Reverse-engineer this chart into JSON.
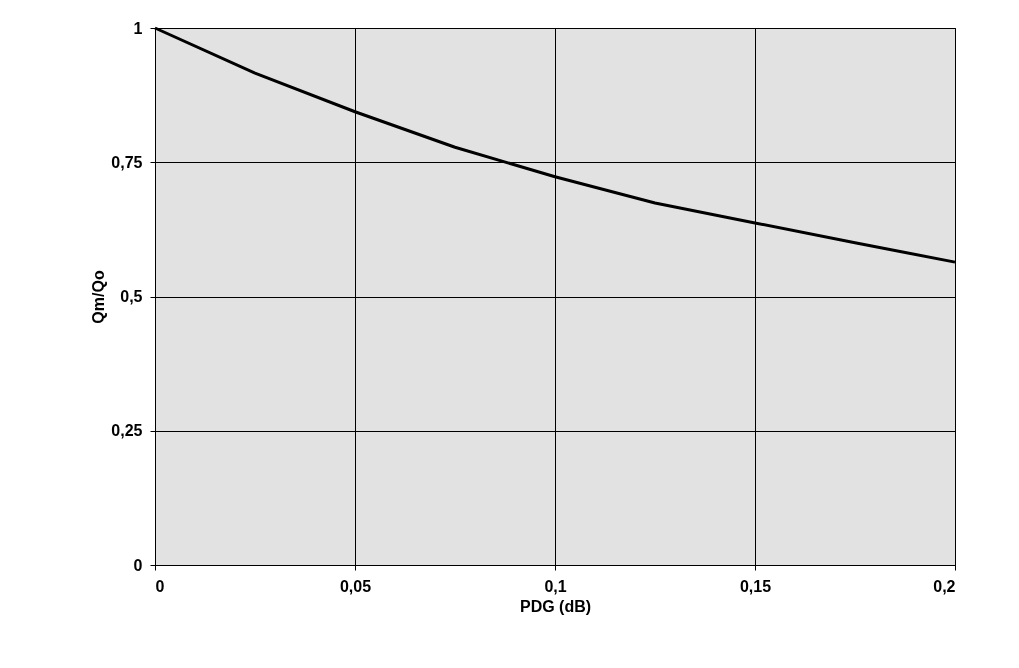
{
  "chart_data": {
    "type": "line",
    "xlabel": "PDG (dB)",
    "ylabel": "Qm/Qo",
    "x": [
      0,
      0.025,
      0.05,
      0.075,
      0.1,
      0.125,
      0.15,
      0.175,
      0.2
    ],
    "series": [
      {
        "color": "#000000",
        "values": [
          1.0,
          0.916,
          0.844,
          0.778,
          0.723,
          0.674,
          0.637,
          0.6,
          0.564
        ]
      }
    ],
    "xlim": [
      0,
      0.2
    ],
    "ylim": [
      0,
      1
    ],
    "xticks": [
      0,
      {
        "value": 0.05,
        "label": "0,05"
      },
      {
        "value": 0.1,
        "label": "0,1"
      },
      {
        "value": 0.15,
        "label": "0,15"
      },
      {
        "value": 0.2,
        "label": "0,2"
      }
    ],
    "yticks": [
      0,
      {
        "value": 0.25,
        "label": "0,25"
      },
      {
        "value": 0.5,
        "label": "0,5"
      },
      {
        "value": 0.75,
        "label": "0,75"
      },
      1
    ],
    "grid": true,
    "marker": "none",
    "line_style": "solid"
  }
}
